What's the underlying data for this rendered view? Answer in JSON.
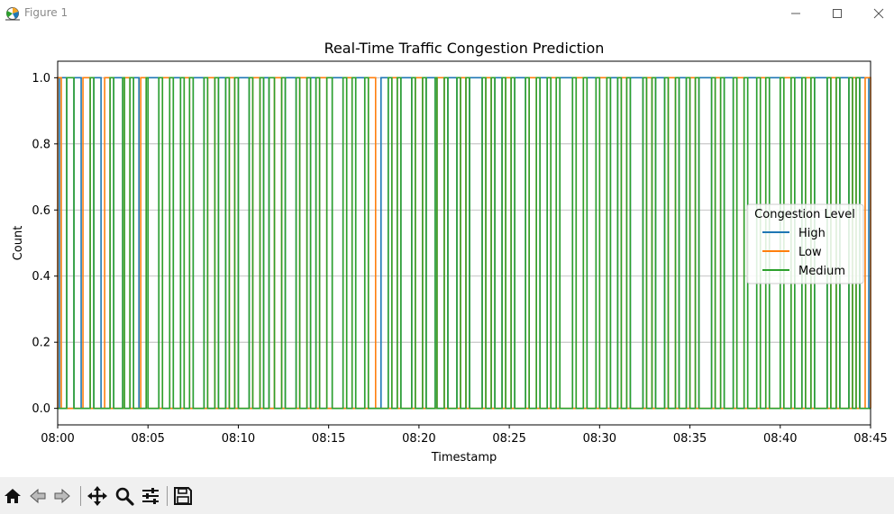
{
  "window": {
    "title": "Figure 1",
    "icon": "matplotlib-figure-icon",
    "controls": [
      "minimize-icon",
      "maximize-icon",
      "close-icon"
    ]
  },
  "toolbar": {
    "buttons": [
      {
        "name": "home-button",
        "icon": "home-icon"
      },
      {
        "name": "back-button",
        "icon": "back-arrow-icon"
      },
      {
        "name": "forward-button",
        "icon": "forward-arrow-icon"
      },
      {
        "name": "pan-button",
        "icon": "move-icon"
      },
      {
        "name": "zoom-button",
        "icon": "magnifier-icon"
      },
      {
        "name": "configure-subplots-button",
        "icon": "sliders-icon"
      },
      {
        "name": "save-button",
        "icon": "floppy-disk-icon"
      }
    ]
  },
  "chart_data": {
    "type": "line",
    "title": "Real-Time Traffic Congestion Prediction",
    "xlabel": "Timestamp",
    "ylabel": "Count",
    "xlim": [
      "08:00",
      "08:45"
    ],
    "ylim": [
      -0.05,
      1.05
    ],
    "x_ticks": [
      "08:00",
      "08:05",
      "08:10",
      "08:15",
      "08:20",
      "08:25",
      "08:30",
      "08:35",
      "08:40",
      "08:45"
    ],
    "y_ticks": [
      "0.0",
      "0.2",
      "0.4",
      "0.6",
      "0.8",
      "1.0"
    ],
    "grid": "horizontal",
    "legend": {
      "title": "Congestion Level",
      "placement": "center-right"
    },
    "series": [
      {
        "name": "High",
        "color": "#1f77b4",
        "start": "08:00:00",
        "step_seconds": 5,
        "level": 1.0,
        "active_minutes": [
          [
            0.1,
            0.5
          ],
          [
            0.9,
            1.3
          ],
          [
            2.0,
            2.4
          ],
          [
            3.1,
            3.6
          ],
          [
            4.2,
            4.5
          ],
          [
            5.0,
            5.6
          ],
          [
            6.4,
            6.8
          ],
          [
            7.5,
            8.1
          ],
          [
            8.9,
            9.3
          ],
          [
            10.0,
            10.6
          ],
          [
            11.4,
            11.7
          ],
          [
            12.6,
            13.2
          ],
          [
            14.0,
            14.3
          ],
          [
            15.2,
            15.8
          ],
          [
            16.5,
            17.0
          ],
          [
            17.9,
            18.3
          ],
          [
            19.0,
            19.6
          ],
          [
            20.4,
            20.9
          ],
          [
            21.6,
            22.1
          ],
          [
            22.8,
            23.5
          ],
          [
            24.2,
            24.6
          ],
          [
            25.3,
            25.9
          ],
          [
            26.7,
            27.1
          ],
          [
            27.8,
            28.5
          ],
          [
            29.3,
            29.8
          ],
          [
            30.6,
            31.0
          ],
          [
            31.7,
            32.4
          ],
          [
            33.1,
            33.6
          ],
          [
            34.4,
            34.8
          ],
          [
            35.5,
            36.2
          ],
          [
            36.9,
            37.4
          ],
          [
            38.2,
            38.7
          ],
          [
            39.4,
            40.0
          ],
          [
            40.8,
            41.2
          ],
          [
            41.9,
            42.6
          ],
          [
            43.3,
            43.8
          ],
          [
            44.4,
            44.9
          ]
        ]
      },
      {
        "name": "Low",
        "color": "#ff7f0e",
        "start": "08:00:00",
        "step_seconds": 5,
        "level": 1.0,
        "active_minutes": [
          [
            0.0,
            0.2
          ],
          [
            1.4,
            1.8
          ],
          [
            2.6,
            2.9
          ],
          [
            3.7,
            4.0
          ],
          [
            4.6,
            4.9
          ],
          [
            5.8,
            6.2
          ],
          [
            7.0,
            7.3
          ],
          [
            8.3,
            8.7
          ],
          [
            9.5,
            9.8
          ],
          [
            10.8,
            11.2
          ],
          [
            12.0,
            12.4
          ],
          [
            13.4,
            13.8
          ],
          [
            14.5,
            14.9
          ],
          [
            16.0,
            16.3
          ],
          [
            17.2,
            17.6
          ],
          [
            18.5,
            18.8
          ],
          [
            19.8,
            20.2
          ],
          [
            21.0,
            21.4
          ],
          [
            22.3,
            22.6
          ],
          [
            23.7,
            24.0
          ],
          [
            24.8,
            25.1
          ],
          [
            26.1,
            26.5
          ],
          [
            27.3,
            27.6
          ],
          [
            28.7,
            29.1
          ],
          [
            30.0,
            30.4
          ],
          [
            31.2,
            31.5
          ],
          [
            32.6,
            32.9
          ],
          [
            33.8,
            34.2
          ],
          [
            35.0,
            35.3
          ],
          [
            36.4,
            36.7
          ],
          [
            37.6,
            38.0
          ],
          [
            38.9,
            39.2
          ],
          [
            40.2,
            40.6
          ],
          [
            41.4,
            41.7
          ],
          [
            42.8,
            43.1
          ],
          [
            44.0,
            44.2
          ],
          [
            44.7,
            45.0
          ]
        ]
      },
      {
        "name": "Medium",
        "color": "#2ca02c",
        "start": "08:00:00",
        "step_seconds": 5,
        "level": 1.0,
        "active_minutes": [
          [
            0.5,
            0.9
          ],
          [
            1.8,
            2.0
          ],
          [
            2.9,
            3.1
          ],
          [
            3.6,
            3.7
          ],
          [
            4.0,
            4.2
          ],
          [
            4.9,
            5.0
          ],
          [
            5.6,
            5.8
          ],
          [
            6.2,
            6.4
          ],
          [
            6.8,
            7.0
          ],
          [
            7.3,
            7.5
          ],
          [
            8.1,
            8.3
          ],
          [
            8.7,
            8.9
          ],
          [
            9.3,
            9.5
          ],
          [
            9.8,
            10.0
          ],
          [
            10.6,
            10.8
          ],
          [
            11.2,
            11.4
          ],
          [
            11.7,
            12.0
          ],
          [
            12.4,
            12.6
          ],
          [
            13.2,
            13.4
          ],
          [
            13.8,
            14.0
          ],
          [
            14.3,
            14.5
          ],
          [
            14.9,
            15.2
          ],
          [
            15.8,
            16.0
          ],
          [
            16.3,
            16.5
          ],
          [
            17.0,
            17.2
          ],
          [
            18.3,
            18.5
          ],
          [
            18.8,
            19.0
          ],
          [
            19.6,
            19.8
          ],
          [
            20.2,
            20.4
          ],
          [
            20.9,
            21.0
          ],
          [
            21.4,
            21.6
          ],
          [
            22.1,
            22.3
          ],
          [
            22.6,
            22.8
          ],
          [
            23.5,
            23.7
          ],
          [
            24.0,
            24.2
          ],
          [
            24.6,
            24.8
          ],
          [
            25.1,
            25.3
          ],
          [
            25.9,
            26.1
          ],
          [
            26.5,
            26.7
          ],
          [
            27.1,
            27.3
          ],
          [
            27.6,
            27.8
          ],
          [
            28.5,
            28.7
          ],
          [
            29.1,
            29.3
          ],
          [
            29.8,
            30.0
          ],
          [
            30.4,
            30.6
          ],
          [
            31.0,
            31.2
          ],
          [
            31.5,
            31.7
          ],
          [
            32.4,
            32.6
          ],
          [
            32.9,
            33.1
          ],
          [
            33.6,
            33.8
          ],
          [
            34.2,
            34.4
          ],
          [
            34.8,
            35.0
          ],
          [
            35.3,
            35.5
          ],
          [
            36.2,
            36.4
          ],
          [
            36.7,
            36.9
          ],
          [
            37.4,
            37.6
          ],
          [
            38.0,
            38.2
          ],
          [
            38.7,
            38.9
          ],
          [
            39.2,
            39.4
          ],
          [
            40.0,
            40.2
          ],
          [
            40.6,
            40.8
          ],
          [
            41.2,
            41.4
          ],
          [
            41.7,
            41.9
          ],
          [
            42.6,
            42.8
          ],
          [
            43.1,
            43.3
          ],
          [
            43.8,
            44.0
          ],
          [
            44.2,
            44.4
          ]
        ]
      }
    ]
  }
}
